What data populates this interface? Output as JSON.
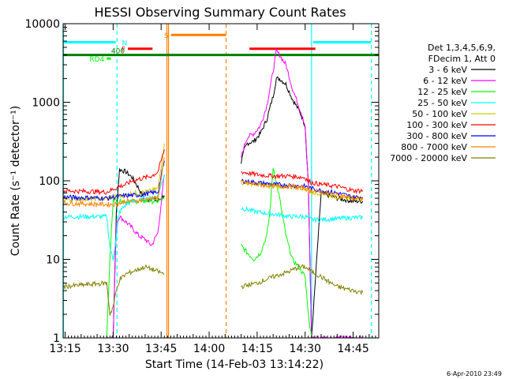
{
  "chart_data": {
    "type": "line",
    "title": "HESSI Observing Summary Count Rates",
    "xlabel": "Start Time (14-Feb-03 13:14:22)",
    "ylabel": "Count Rate (s⁻¹ detector⁻¹)",
    "x_ticks": [
      "13:15",
      "13:30",
      "13:45",
      "14:00",
      "14:15",
      "14:30",
      "14:45"
    ],
    "x_tick_minutes": [
      15,
      30,
      45,
      60,
      75,
      90,
      105
    ],
    "xlim_minutes": [
      14.37,
      113.0
    ],
    "y_scale": "log",
    "ylim": [
      1,
      10000
    ],
    "y_ticks": [
      "1",
      "10",
      "100",
      "1000",
      "10000"
    ],
    "y_tick_values": [
      1,
      10,
      100,
      1000,
      10000
    ],
    "legend_placement": "right",
    "legend_header": [
      "Det 1,3,4,5,6,9,",
      "FDecim 1, Att 0"
    ],
    "footer_date": "6-Apr-2010 23:49",
    "series": [
      {
        "name": "3 - 6 keV",
        "color": "#000000",
        "x": [
          28,
          30,
          31,
          32,
          34,
          36,
          38,
          40,
          42,
          44,
          46,
          70,
          71,
          72,
          74,
          76,
          78,
          80,
          81,
          82,
          84,
          86,
          88,
          89,
          90,
          91,
          92,
          95,
          100,
          105,
          108
        ],
        "y": [
          1,
          1,
          40,
          140,
          130,
          110,
          80,
          55,
          60,
          55,
          65,
          170,
          250,
          300,
          320,
          400,
          600,
          1200,
          2000,
          2000,
          1700,
          1100,
          800,
          650,
          500,
          90,
          1,
          70,
          60,
          55,
          55
        ]
      },
      {
        "name": "6 - 12 keV",
        "color": "#ff00ff",
        "x": [
          28,
          30,
          31,
          32,
          34,
          36,
          38,
          40,
          42,
          44,
          46,
          70,
          71,
          72,
          74,
          76,
          78,
          80,
          81,
          82,
          84,
          86,
          88,
          89,
          90,
          91,
          92,
          95,
          100,
          105,
          108
        ],
        "y": [
          1,
          1,
          30,
          35,
          30,
          25,
          20,
          18,
          15,
          22,
          120,
          200,
          280,
          360,
          400,
          500,
          900,
          2500,
          4500,
          4000,
          3000,
          1500,
          900,
          700,
          500,
          90,
          1,
          1,
          1,
          1,
          1
        ]
      },
      {
        "name": "12 - 25 keV",
        "color": "#00ff00",
        "x": [
          28,
          29,
          30,
          31,
          32,
          34,
          36,
          38,
          40,
          42,
          44,
          46,
          70,
          72,
          74,
          76,
          78,
          79,
          80,
          82,
          84,
          86,
          88,
          90,
          91,
          92
        ],
        "y": [
          1,
          10,
          60,
          55,
          55,
          55,
          55,
          55,
          55,
          55,
          55,
          60,
          15,
          12,
          10,
          12,
          20,
          40,
          150,
          60,
          20,
          10,
          8,
          6,
          2,
          1
        ]
      },
      {
        "name": "25 - 50 keV",
        "color": "#00ffff",
        "x": [
          14.4,
          28,
          29,
          30,
          31,
          32,
          34,
          36,
          38,
          40,
          42,
          44,
          46,
          70,
          75,
          80,
          85,
          90,
          91,
          92,
          95,
          100,
          105,
          108
        ],
        "y": [
          35,
          35,
          14,
          10,
          20,
          40,
          50,
          55,
          55,
          60,
          60,
          65,
          120,
          45,
          40,
          38,
          35,
          35,
          34,
          32,
          32,
          33,
          34,
          34
        ]
      },
      {
        "name": "50 - 100 keV",
        "color": "#cccc00",
        "x": [
          14.4,
          28,
          30,
          32,
          34,
          36,
          38,
          40,
          42,
          44,
          46,
          70,
          75,
          80,
          85,
          90,
          91,
          92,
          95,
          100,
          105,
          108
        ],
        "y": [
          58,
          60,
          62,
          65,
          65,
          70,
          70,
          72,
          75,
          80,
          300,
          95,
          90,
          85,
          85,
          80,
          75,
          70,
          70,
          62,
          60,
          60
        ]
      },
      {
        "name": "100 - 300 keV",
        "color": "#ff0000",
        "x": [
          14.4,
          28,
          30,
          32,
          34,
          36,
          38,
          40,
          42,
          44,
          46,
          70,
          75,
          80,
          85,
          90,
          91,
          92,
          95,
          100,
          105,
          108
        ],
        "y": [
          75,
          72,
          78,
          85,
          90,
          100,
          105,
          110,
          115,
          130,
          250,
          130,
          120,
          115,
          115,
          110,
          100,
          95,
          90,
          85,
          75,
          75
        ]
      },
      {
        "name": "300 - 800 keV",
        "color": "#0000ff",
        "x": [
          14.4,
          28,
          30,
          32,
          34,
          36,
          38,
          40,
          42,
          44,
          46,
          70,
          75,
          80,
          85,
          90,
          92,
          95,
          100,
          105,
          108
        ],
        "y": [
          62,
          60,
          62,
          63,
          65,
          65,
          66,
          68,
          70,
          72,
          180,
          100,
          95,
          90,
          88,
          85,
          80,
          75,
          70,
          62,
          62
        ]
      },
      {
        "name": "800 - 7000 keV",
        "color": "#ff8000",
        "x": [
          14.4,
          28,
          30,
          32,
          34,
          36,
          38,
          40,
          42,
          44,
          46,
          70,
          75,
          80,
          85,
          90,
          92,
          95,
          100,
          105,
          108
        ],
        "y": [
          52,
          50,
          50,
          52,
          55,
          55,
          56,
          58,
          60,
          60,
          200,
          95,
          90,
          85,
          85,
          80,
          75,
          72,
          66,
          60,
          58
        ]
      },
      {
        "name": "7000 - 20000 keV",
        "color": "#808000",
        "x": [
          14.4,
          20,
          28,
          29,
          30,
          31,
          32,
          34,
          36,
          38,
          40,
          42,
          44,
          46,
          70,
          75,
          80,
          85,
          88,
          90,
          92,
          95,
          98,
          100,
          105,
          108
        ],
        "y": [
          4.5,
          4.7,
          5,
          2,
          2.5,
          4,
          5.5,
          6.5,
          7,
          7.5,
          8,
          7.5,
          7,
          6.5,
          4.5,
          5,
          6,
          7,
          8,
          8,
          7,
          6,
          5,
          4.5,
          4,
          3.8
        ]
      }
    ],
    "flag_bars": [
      {
        "label": "N",
        "color": "#00ffff",
        "y": 5800,
        "segments": [
          [
            14.4,
            30.8
          ],
          [
            92.5,
            110.5
          ]
        ]
      },
      {
        "label": "F",
        "color": "#ff0000",
        "y": 4800,
        "segments": [
          [
            34.6,
            42.3
          ],
          [
            72.6,
            93.2
          ]
        ]
      },
      {
        "label": "S",
        "color": "#ff8000",
        "y": 7200,
        "segments": [
          [
            48.1,
            65.3
          ]
        ]
      },
      {
        "label": "RD4",
        "color": "#00ff00",
        "y": 3600,
        "segments": [
          [
            28,
            29.3
          ]
        ]
      },
      {
        "label": "400",
        "color": "#008000",
        "y": 4000,
        "segments": [
          [
            14.4,
            113
          ]
        ]
      }
    ],
    "vertical_lines": [
      {
        "minute": 14.5,
        "color": "#00ffff",
        "style": "solid"
      },
      {
        "minute": 31.2,
        "color": "#00ffff",
        "style": "dashed"
      },
      {
        "minute": 46.8,
        "color": "#ff8000",
        "style": "solid"
      },
      {
        "minute": 47.3,
        "color": "#ff8000",
        "style": "solid"
      },
      {
        "minute": 65.3,
        "color": "#ff8000",
        "style": "dashed"
      },
      {
        "minute": 92.0,
        "color": "#00ffff",
        "style": "solid"
      },
      {
        "minute": 110.7,
        "color": "#00ffff",
        "style": "dashed"
      }
    ]
  }
}
